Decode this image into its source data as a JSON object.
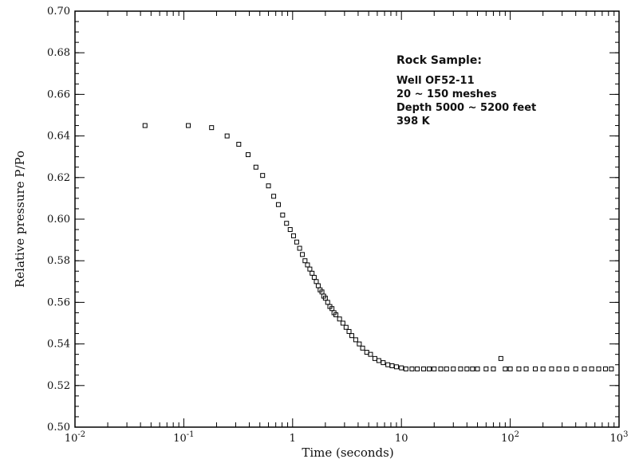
{
  "chart_data": {
    "type": "scatter",
    "title": "",
    "xlabel": "Time (seconds)",
    "ylabel": "Relative pressure P/Po",
    "xscale": "log",
    "xlim": [
      0.01,
      1000
    ],
    "ylim": [
      0.5,
      0.7
    ],
    "grid": false,
    "x_tick_labels": [
      {
        "value": 0.01,
        "base": "10",
        "exp": "-2"
      },
      {
        "value": 0.1,
        "base": "10",
        "exp": "-1"
      },
      {
        "value": 1,
        "base": "1",
        "exp": ""
      },
      {
        "value": 10,
        "base": "10",
        "exp": ""
      },
      {
        "value": 100,
        "base": "10",
        "exp": "2"
      },
      {
        "value": 1000,
        "base": "10",
        "exp": "3"
      }
    ],
    "y_tick_labels": [
      "0.50",
      "0.52",
      "0.54",
      "0.56",
      "0.58",
      "0.60",
      "0.62",
      "0.64",
      "0.66",
      "0.68",
      "0.70"
    ],
    "annotations": [
      "Rock Sample:",
      "Well OF52-11",
      "20 ~ 150 meshes",
      "Depth 5000 ~ 5200 feet",
      "398 K"
    ],
    "series": [
      {
        "marker": "open-square",
        "x": [
          0.044,
          0.11,
          0.18,
          0.25,
          0.32,
          0.39,
          0.46,
          0.53,
          0.6,
          0.67,
          0.74,
          0.81,
          0.88,
          0.95,
          1.02,
          1.09,
          1.16,
          1.23,
          1.3,
          1.37,
          1.44,
          1.51,
          1.58,
          1.65,
          1.72,
          1.79,
          1.86,
          1.93,
          2.0,
          2.1,
          2.2,
          2.3,
          2.4,
          2.5,
          2.7,
          2.9,
          3.1,
          3.3,
          3.5,
          3.8,
          4.1,
          4.4,
          4.8,
          5.2,
          5.7,
          6.2,
          6.8,
          7.5,
          8.2,
          9.0,
          10,
          11,
          12.5,
          14,
          16,
          18,
          20,
          23,
          26,
          30,
          35,
          40,
          45,
          50,
          60,
          70,
          82,
          90,
          100,
          120,
          140,
          170,
          200,
          240,
          280,
          330,
          400,
          480,
          560,
          650,
          750,
          850
        ],
        "y": [
          0.645,
          0.645,
          0.644,
          0.64,
          0.636,
          0.631,
          0.625,
          0.621,
          0.616,
          0.611,
          0.607,
          0.602,
          0.598,
          0.595,
          0.592,
          0.589,
          0.586,
          0.583,
          0.58,
          0.578,
          0.576,
          0.574,
          0.572,
          0.57,
          0.568,
          0.566,
          0.565,
          0.563,
          0.562,
          0.56,
          0.558,
          0.557,
          0.555,
          0.554,
          0.552,
          0.55,
          0.548,
          0.546,
          0.544,
          0.542,
          0.54,
          0.538,
          0.536,
          0.535,
          0.533,
          0.532,
          0.531,
          0.53,
          0.5295,
          0.529,
          0.5285,
          0.528,
          0.528,
          0.528,
          0.528,
          0.528,
          0.528,
          0.528,
          0.528,
          0.528,
          0.528,
          0.528,
          0.528,
          0.528,
          0.528,
          0.528,
          0.533,
          0.528,
          0.528,
          0.528,
          0.528,
          0.528,
          0.528,
          0.528,
          0.528,
          0.528,
          0.528,
          0.528,
          0.528,
          0.528,
          0.528,
          0.528
        ]
      }
    ]
  }
}
